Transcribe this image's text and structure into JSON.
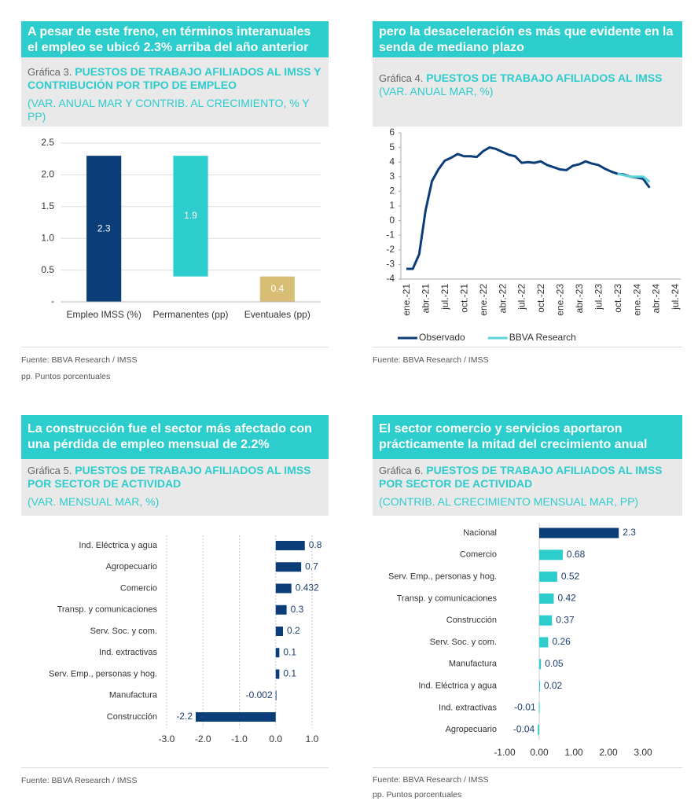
{
  "chart_data": [
    {
      "type": "waterfall",
      "heading": "A pesar de este freno, en términos interanuales el empleo se ubicó 2.3% arriba del año anterior",
      "label": "Gráfica 3.",
      "title": "PUESTOS DE TRABAJO AFILIADOS AL IMSS Y CONTRIBUCIÓN POR TIPO DE EMPLEO",
      "subtitle": "(VAR. ANUAL MAR Y CONTRIB. AL CRECIMIENTO, % Y PP)",
      "categories": [
        "Empleo IMSS (%)",
        "Permanentes (pp)",
        "Eventuales (pp)"
      ],
      "values": [
        2.3,
        1.9,
        0.4
      ],
      "colors": [
        "#0b3d79",
        "#2dcccd",
        "#d8be75"
      ],
      "ylim": [
        0,
        2.5
      ],
      "yticks": [
        {
          "value": 0,
          "label": "-"
        },
        0.5,
        {
          "value": 1,
          "label": "1.0"
        },
        1.5,
        {
          "value": 2,
          "label": "2.0"
        },
        2.5
      ],
      "grid": true,
      "notes": [
        "Fuente: BBVA Research / IMSS",
        "pp. Puntos porcentuales"
      ]
    },
    {
      "type": "line",
      "heading": "pero la desaceleración es más que evidente en la senda de mediano plazo",
      "label": "Gráfica 4.",
      "title": "PUESTOS DE TRABAJO AFILIADOS AL IMSS",
      "subtitle": "(VAR. ANUAL MAR, %)",
      "categories": [
        "ene.-21",
        null,
        null,
        "abr.-21",
        null,
        null,
        "jul.-21",
        null,
        null,
        "oct.-21",
        null,
        null,
        "ene.-22",
        null,
        null,
        "abr.-22",
        null,
        null,
        "jul.-22",
        null,
        null,
        "oct.-22",
        null,
        null,
        "ene.-23",
        null,
        null,
        "abr.-23",
        null,
        null,
        "jul.-23",
        null,
        null,
        "oct.-23",
        null,
        null,
        "ene.-24",
        null,
        null,
        "abr.-24",
        null,
        null,
        "jul.-24"
      ],
      "series": [
        {
          "name": "Observado",
          "color": "#0b3d79",
          "values": [
            -3.3,
            -3.3,
            -2.3,
            0.7,
            2.7,
            3.5,
            4.1,
            4.3,
            4.55,
            4.4,
            4.4,
            4.35,
            4.75,
            5.0,
            4.9,
            4.7,
            4.5,
            4.4,
            3.95,
            4.0,
            3.95,
            4.05,
            3.8,
            3.65,
            3.5,
            3.45,
            3.75,
            3.85,
            4.05,
            3.9,
            3.8,
            3.55,
            3.35,
            3.2,
            3.15,
            3.0,
            2.95,
            2.85,
            2.25,
            null,
            null,
            null,
            null
          ]
        },
        {
          "name": "BBVA Research",
          "color": "#5bd3d8",
          "values": [
            null,
            null,
            null,
            null,
            null,
            null,
            null,
            null,
            null,
            null,
            null,
            null,
            null,
            null,
            null,
            null,
            null,
            null,
            null,
            null,
            null,
            null,
            null,
            null,
            null,
            null,
            null,
            null,
            null,
            null,
            null,
            null,
            null,
            3.2,
            3.1,
            3.0,
            3.0,
            3.0,
            2.65,
            null,
            null,
            null,
            null
          ]
        }
      ],
      "ylim": [
        -4,
        6
      ],
      "yticks": [
        -4,
        -3,
        -2,
        -1,
        0,
        1,
        2,
        3,
        4,
        5,
        6
      ],
      "grid": false,
      "legend": "bottom",
      "notes": [
        "Fuente: BBVA Research / IMSS"
      ]
    },
    {
      "type": "hbar",
      "heading": "La construcción fue el sector más afectado con una pérdida de empleo mensual de 2.2%",
      "label": "Gráfica 5.",
      "title": "PUESTOS DE TRABAJO AFILIADOS AL IMSS POR SECTOR DE ACTIVIDAD",
      "subtitle": "(VAR. MENSUAL MAR, %)",
      "categories": [
        "Ind. Eléctrica y agua",
        "Agropecuario",
        "Comercio",
        "Transp. y comunicaciones",
        "Serv. Soc. y com.",
        "Ind. extractivas",
        "Serv. Emp., personas y hog.",
        "Manufactura",
        "Construcción"
      ],
      "values": [
        0.8,
        0.7,
        0.432,
        0.3,
        0.2,
        0.1,
        0.1,
        -0.002,
        -2.2
      ],
      "colors": [
        "#0b3d79",
        "#0b3d79",
        "#0b3d79",
        "#0b3d79",
        "#0b3d79",
        "#0b3d79",
        "#0b3d79",
        "#0b3d79",
        "#0b3d79"
      ],
      "xlim": [
        -3,
        1
      ],
      "xticks": [
        {
          "value": -3,
          "label": "-3.0"
        },
        {
          "value": -2,
          "label": "-2.0"
        },
        {
          "value": -1,
          "label": "-1.0"
        },
        {
          "value": 0,
          "label": "0.0"
        },
        {
          "value": 1,
          "label": "1.0"
        }
      ],
      "grid": true,
      "notes": [
        "Fuente: BBVA Research / IMSS"
      ]
    },
    {
      "type": "hbar",
      "heading": "El sector comercio y servicios aportaron prácticamente la mitad del crecimiento anual",
      "label": "Gráfica 6.",
      "title": "PUESTOS DE TRABAJO AFILIADOS AL IMSS POR SECTOR DE ACTIVIDAD",
      "subtitle": "(CONTRIB. AL CRECIMIENTO MENSUAL MAR, PP)",
      "categories": [
        "Nacional",
        "Comercio",
        "Serv. Emp., personas y hog.",
        "Transp. y comunicaciones",
        "Construcción",
        "Serv. Soc. y com.",
        "Manufactura",
        "Ind. Eléctrica y agua",
        "Ind. extractivas",
        "Agropecuario"
      ],
      "values": [
        2.3,
        0.68,
        0.52,
        0.42,
        0.37,
        0.26,
        0.05,
        0.02,
        -0.01,
        -0.04
      ],
      "colors": [
        "#0b3d79",
        "#2dcccd",
        "#2dcccd",
        "#2dcccd",
        "#2dcccd",
        "#2dcccd",
        "#2dcccd",
        "#2dcccd",
        "#2dcccd",
        "#2dcccd"
      ],
      "xlim": [
        -1,
        3
      ],
      "xticks": [
        {
          "value": -1,
          "label": "-1.00"
        },
        {
          "value": 0,
          "label": "0.00"
        },
        {
          "value": 1,
          "label": "1.00"
        },
        {
          "value": 2,
          "label": "2.00"
        },
        {
          "value": 3,
          "label": "3.00"
        }
      ],
      "grid": false,
      "notes": [
        "Fuente: BBVA Research / IMSS",
        "pp. Puntos porcentuales"
      ]
    }
  ]
}
